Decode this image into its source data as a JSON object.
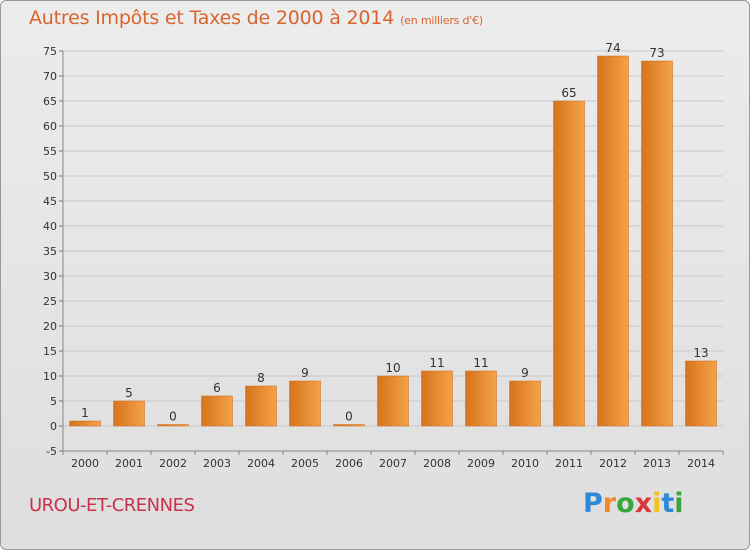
{
  "title": "Autres Impôts et Taxes de 2000 à 2014",
  "unit_note": "(en milliers d'€)",
  "commune": "UROU-ET-CRENNES",
  "logo": {
    "letters": [
      "P",
      "r",
      "o",
      "x",
      "i",
      "t",
      "i"
    ],
    "colors": [
      "#2e8ad8",
      "#f08a24",
      "#3aa53a",
      "#d83a3a",
      "#f0c020",
      "#2e8ad8",
      "#3aa53a"
    ]
  },
  "colors": {
    "bar_light": "#f4a24a",
    "bar_dark": "#d8731c",
    "title": "#d8642e",
    "commune": "#c8324a"
  },
  "chart_data": {
    "type": "bar",
    "categories": [
      "2000",
      "2001",
      "2002",
      "2003",
      "2004",
      "2005",
      "2006",
      "2007",
      "2008",
      "2009",
      "2010",
      "2011",
      "2012",
      "2013",
      "2014"
    ],
    "values": [
      1,
      5,
      0,
      6,
      8,
      9,
      0,
      10,
      11,
      11,
      9,
      65,
      74,
      73,
      13
    ],
    "labels": [
      "1",
      "5",
      "0",
      "6",
      "8",
      "9",
      "0",
      "10",
      "11",
      "11",
      "9",
      "65",
      "74",
      "73",
      "13"
    ],
    "y_ticks": [
      -5,
      0,
      5,
      10,
      15,
      20,
      25,
      30,
      35,
      40,
      45,
      50,
      55,
      60,
      65,
      70,
      75
    ],
    "ylim": [
      -5,
      75
    ],
    "grid": true
  }
}
